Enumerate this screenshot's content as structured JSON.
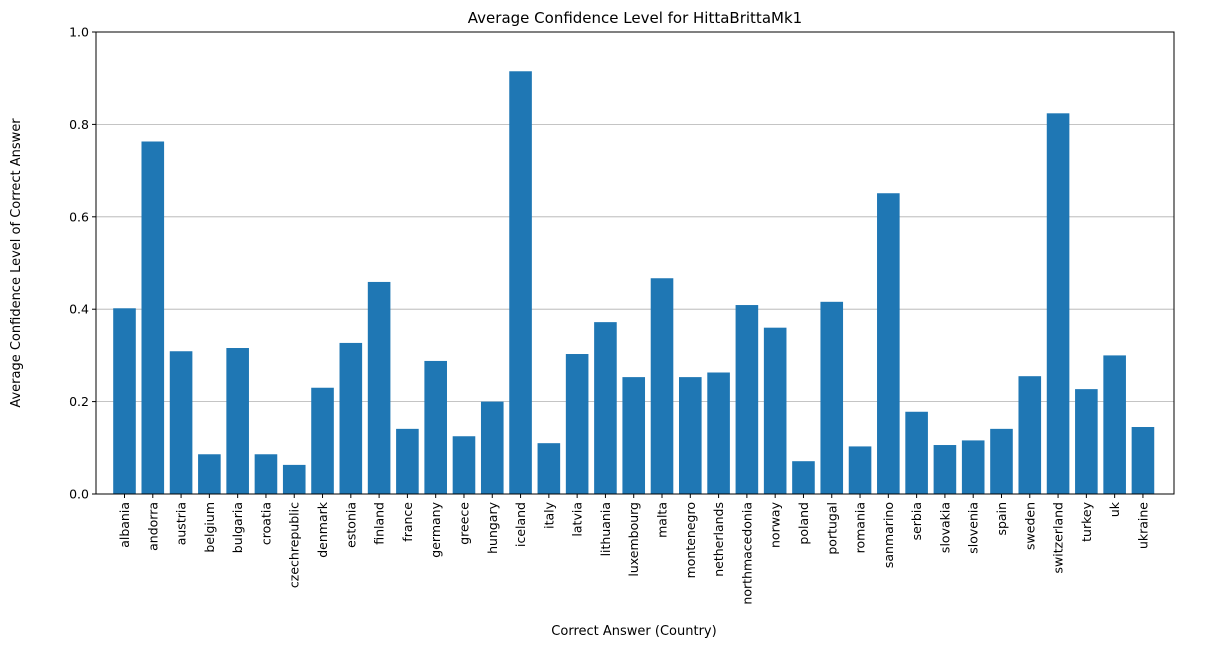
{
  "chart_data": {
    "type": "bar",
    "title": "Average Confidence Level for HittaBrittaMk1",
    "xlabel": "Correct Answer (Country)",
    "ylabel": "Average Confidence Level of Correct Answer",
    "ylim": [
      0,
      1.0
    ],
    "yticks": [
      "0.0",
      "0.2",
      "0.4",
      "0.6",
      "0.8",
      "1.0"
    ],
    "grid": "horizontal",
    "bar_color": "#1f77b4",
    "categories": [
      "albania",
      "andorra",
      "austria",
      "belgium",
      "bulgaria",
      "croatia",
      "czechrepublic",
      "denmark",
      "estonia",
      "finland",
      "france",
      "germany",
      "greece",
      "hungary",
      "iceland",
      "italy",
      "latvia",
      "lithuania",
      "luxembourg",
      "malta",
      "montenegro",
      "netherlands",
      "northmacedonia",
      "norway",
      "poland",
      "portugal",
      "romania",
      "sanmarino",
      "serbia",
      "slovakia",
      "slovenia",
      "spain",
      "sweden",
      "switzerland",
      "turkey",
      "uk",
      "ukraine"
    ],
    "values": [
      0.402,
      0.763,
      0.309,
      0.086,
      0.316,
      0.086,
      0.063,
      0.23,
      0.327,
      0.459,
      0.141,
      0.288,
      0.125,
      0.2,
      0.915,
      0.11,
      0.303,
      0.372,
      0.253,
      0.467,
      0.253,
      0.263,
      0.409,
      0.36,
      0.071,
      0.416,
      0.103,
      0.651,
      0.178,
      0.106,
      0.116,
      0.141,
      0.255,
      0.824,
      0.227,
      0.3,
      0.145
    ]
  }
}
